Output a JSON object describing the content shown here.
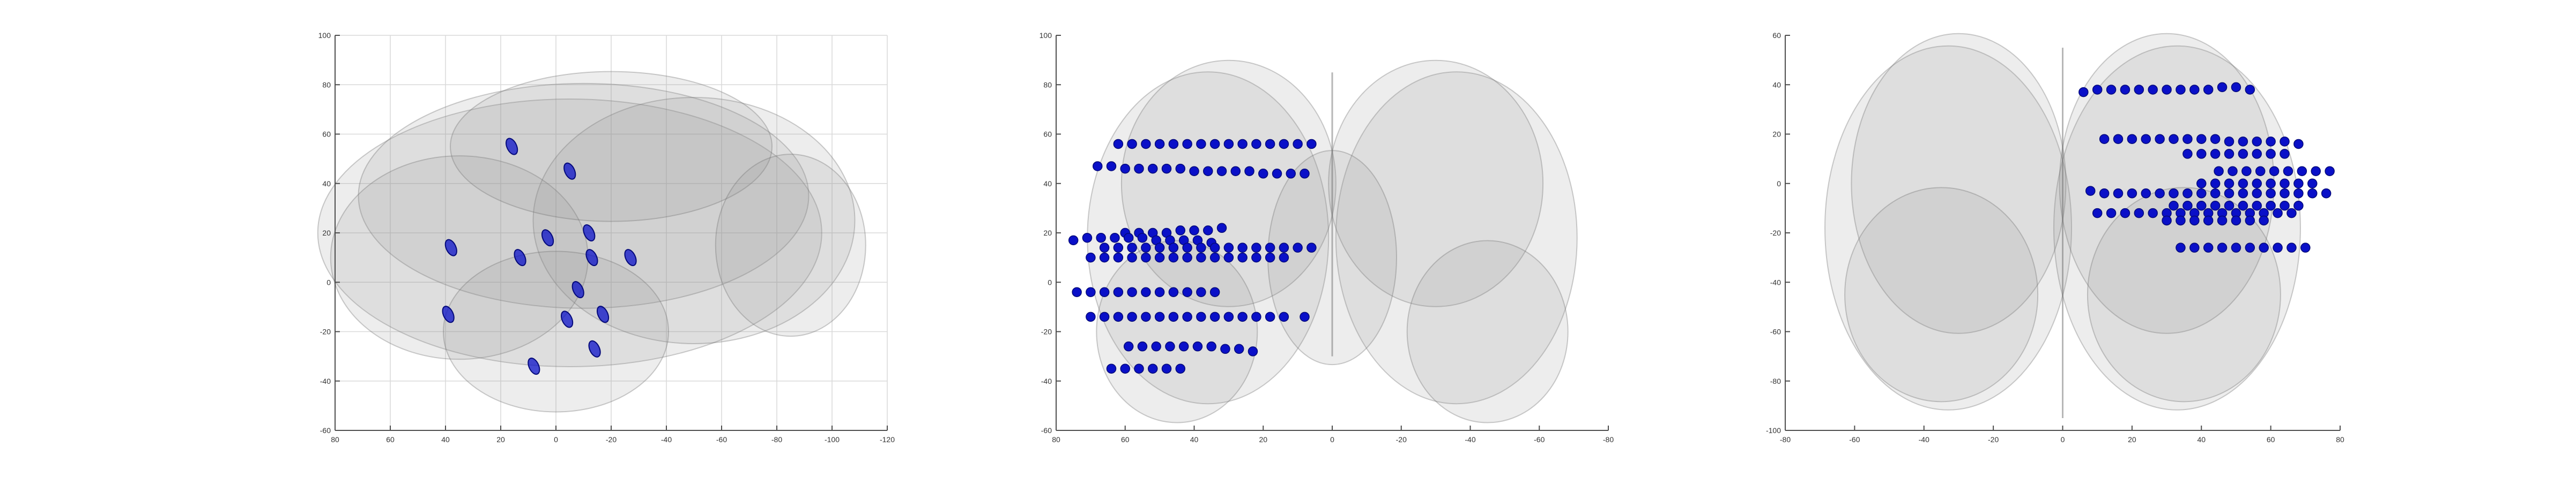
{
  "colors": {
    "background": "#ffffff",
    "axis": "#4d4d4d",
    "grid": "#d9d9d9",
    "tick_text": "#333333",
    "brain": "#8c8c8c",
    "electrode": "#0a10c8",
    "electrode_dark": "#050a7a"
  },
  "panels": [
    {
      "view": "sagittal",
      "grid": true,
      "xlim": [
        80,
        -120
      ],
      "ylim": [
        -60,
        100
      ],
      "x_ticks": [
        "80",
        "60",
        "40",
        "20",
        "0",
        "-20",
        "-40",
        "-60",
        "-80",
        "-100",
        "-120"
      ],
      "y_ticks": [
        "100",
        "80",
        "60",
        "40",
        "20",
        "0",
        "-20",
        "-40",
        "-60"
      ],
      "electrodes": [
        [
          16,
          55
        ],
        [
          -5,
          45
        ],
        [
          -12,
          20
        ],
        [
          3,
          18
        ],
        [
          -13,
          10
        ],
        [
          -27,
          10
        ],
        [
          38,
          14
        ],
        [
          13,
          10
        ],
        [
          -8,
          -3
        ],
        [
          -17,
          -13
        ],
        [
          -4,
          -15
        ],
        [
          39,
          -13
        ],
        [
          -14,
          -27
        ],
        [
          8,
          -34
        ]
      ]
    },
    {
      "view": "coronal",
      "grid": false,
      "xlim": [
        80,
        -80
      ],
      "ylim": [
        -60,
        100
      ],
      "x_ticks": [
        "80",
        "60",
        "40",
        "20",
        "0",
        "-20",
        "-40",
        "-60",
        "-80"
      ],
      "y_ticks": [
        "100",
        "80",
        "60",
        "40",
        "20",
        "0",
        "-20",
        "-40",
        "-60"
      ],
      "electrodes": [
        [
          62,
          56
        ],
        [
          58,
          56
        ],
        [
          54,
          56
        ],
        [
          50,
          56
        ],
        [
          46,
          56
        ],
        [
          42,
          56
        ],
        [
          38,
          56
        ],
        [
          34,
          56
        ],
        [
          30,
          56
        ],
        [
          26,
          56
        ],
        [
          22,
          56
        ],
        [
          18,
          56
        ],
        [
          14,
          56
        ],
        [
          10,
          56
        ],
        [
          6,
          56
        ],
        [
          68,
          47
        ],
        [
          64,
          47
        ],
        [
          60,
          46
        ],
        [
          56,
          46
        ],
        [
          52,
          46
        ],
        [
          48,
          46
        ],
        [
          44,
          46
        ],
        [
          40,
          45
        ],
        [
          36,
          45
        ],
        [
          32,
          45
        ],
        [
          28,
          45
        ],
        [
          24,
          45
        ],
        [
          20,
          44
        ],
        [
          16,
          44
        ],
        [
          12,
          44
        ],
        [
          8,
          44
        ],
        [
          60,
          20
        ],
        [
          56,
          20
        ],
        [
          52,
          20
        ],
        [
          48,
          20
        ],
        [
          44,
          21
        ],
        [
          40,
          21
        ],
        [
          36,
          21
        ],
        [
          32,
          22
        ],
        [
          75,
          17
        ],
        [
          71,
          18
        ],
        [
          67,
          18
        ],
        [
          63,
          18
        ],
        [
          59,
          18
        ],
        [
          55,
          18
        ],
        [
          51,
          17
        ],
        [
          47,
          17
        ],
        [
          43,
          17
        ],
        [
          39,
          17
        ],
        [
          35,
          16
        ],
        [
          66,
          14
        ],
        [
          62,
          14
        ],
        [
          58,
          14
        ],
        [
          54,
          14
        ],
        [
          50,
          14
        ],
        [
          46,
          14
        ],
        [
          42,
          14
        ],
        [
          38,
          14
        ],
        [
          34,
          14
        ],
        [
          30,
          14
        ],
        [
          26,
          14
        ],
        [
          22,
          14
        ],
        [
          18,
          14
        ],
        [
          14,
          14
        ],
        [
          10,
          14
        ],
        [
          6,
          14
        ],
        [
          70,
          10
        ],
        [
          66,
          10
        ],
        [
          62,
          10
        ],
        [
          58,
          10
        ],
        [
          54,
          10
        ],
        [
          50,
          10
        ],
        [
          46,
          10
        ],
        [
          42,
          10
        ],
        [
          38,
          10
        ],
        [
          34,
          10
        ],
        [
          30,
          10
        ],
        [
          26,
          10
        ],
        [
          22,
          10
        ],
        [
          18,
          10
        ],
        [
          14,
          10
        ],
        [
          74,
          -4
        ],
        [
          70,
          -4
        ],
        [
          66,
          -4
        ],
        [
          62,
          -4
        ],
        [
          58,
          -4
        ],
        [
          54,
          -4
        ],
        [
          50,
          -4
        ],
        [
          46,
          -4
        ],
        [
          42,
          -4
        ],
        [
          38,
          -4
        ],
        [
          34,
          -4
        ],
        [
          70,
          -14
        ],
        [
          66,
          -14
        ],
        [
          62,
          -14
        ],
        [
          58,
          -14
        ],
        [
          54,
          -14
        ],
        [
          50,
          -14
        ],
        [
          46,
          -14
        ],
        [
          42,
          -14
        ],
        [
          38,
          -14
        ],
        [
          34,
          -14
        ],
        [
          30,
          -14
        ],
        [
          26,
          -14
        ],
        [
          22,
          -14
        ],
        [
          18,
          -14
        ],
        [
          14,
          -14
        ],
        [
          8,
          -14
        ],
        [
          59,
          -26
        ],
        [
          55,
          -26
        ],
        [
          51,
          -26
        ],
        [
          47,
          -26
        ],
        [
          43,
          -26
        ],
        [
          39,
          -26
        ],
        [
          35,
          -26
        ],
        [
          31,
          -27
        ],
        [
          27,
          -27
        ],
        [
          23,
          -28
        ],
        [
          64,
          -35
        ],
        [
          60,
          -35
        ],
        [
          56,
          -35
        ],
        [
          52,
          -35
        ],
        [
          48,
          -35
        ],
        [
          44,
          -35
        ]
      ]
    },
    {
      "view": "axial",
      "grid": false,
      "xlim": [
        -80,
        80
      ],
      "ylim": [
        -100,
        60
      ],
      "x_ticks": [
        "-80",
        "-60",
        "-40",
        "-20",
        "0",
        "20",
        "40",
        "60",
        "80"
      ],
      "y_ticks": [
        "60",
        "40",
        "20",
        "0",
        "-20",
        "-40",
        "-60",
        "-80",
        "-100"
      ],
      "electrodes": [
        [
          6,
          37
        ],
        [
          10,
          38
        ],
        [
          14,
          38
        ],
        [
          18,
          38
        ],
        [
          22,
          38
        ],
        [
          26,
          38
        ],
        [
          30,
          38
        ],
        [
          34,
          38
        ],
        [
          38,
          38
        ],
        [
          42,
          38
        ],
        [
          46,
          39
        ],
        [
          50,
          39
        ],
        [
          54,
          38
        ],
        [
          12,
          18
        ],
        [
          16,
          18
        ],
        [
          20,
          18
        ],
        [
          24,
          18
        ],
        [
          28,
          18
        ],
        [
          32,
          18
        ],
        [
          36,
          18
        ],
        [
          40,
          18
        ],
        [
          44,
          18
        ],
        [
          48,
          17
        ],
        [
          52,
          17
        ],
        [
          56,
          17
        ],
        [
          60,
          17
        ],
        [
          64,
          17
        ],
        [
          68,
          16
        ],
        [
          36,
          12
        ],
        [
          40,
          12
        ],
        [
          44,
          12
        ],
        [
          48,
          12
        ],
        [
          52,
          12
        ],
        [
          56,
          12
        ],
        [
          60,
          12
        ],
        [
          64,
          12
        ],
        [
          45,
          5
        ],
        [
          49,
          5
        ],
        [
          53,
          5
        ],
        [
          57,
          5
        ],
        [
          61,
          5
        ],
        [
          65,
          5
        ],
        [
          69,
          5
        ],
        [
          73,
          5
        ],
        [
          77,
          5
        ],
        [
          40,
          0
        ],
        [
          44,
          0
        ],
        [
          48,
          0
        ],
        [
          52,
          0
        ],
        [
          56,
          0
        ],
        [
          60,
          0
        ],
        [
          64,
          0
        ],
        [
          68,
          0
        ],
        [
          72,
          0
        ],
        [
          8,
          -3
        ],
        [
          12,
          -4
        ],
        [
          16,
          -4
        ],
        [
          20,
          -4
        ],
        [
          24,
          -4
        ],
        [
          28,
          -4
        ],
        [
          32,
          -4
        ],
        [
          36,
          -4
        ],
        [
          40,
          -4
        ],
        [
          44,
          -4
        ],
        [
          48,
          -4
        ],
        [
          52,
          -4
        ],
        [
          56,
          -4
        ],
        [
          60,
          -4
        ],
        [
          64,
          -4
        ],
        [
          68,
          -4
        ],
        [
          72,
          -4
        ],
        [
          76,
          -4
        ],
        [
          32,
          -9
        ],
        [
          36,
          -9
        ],
        [
          40,
          -9
        ],
        [
          44,
          -9
        ],
        [
          48,
          -9
        ],
        [
          52,
          -9
        ],
        [
          56,
          -9
        ],
        [
          60,
          -9
        ],
        [
          64,
          -9
        ],
        [
          68,
          -9
        ],
        [
          10,
          -12
        ],
        [
          14,
          -12
        ],
        [
          18,
          -12
        ],
        [
          22,
          -12
        ],
        [
          26,
          -12
        ],
        [
          30,
          -12
        ],
        [
          34,
          -12
        ],
        [
          38,
          -12
        ],
        [
          42,
          -12
        ],
        [
          46,
          -12
        ],
        [
          50,
          -12
        ],
        [
          54,
          -12
        ],
        [
          58,
          -12
        ],
        [
          62,
          -12
        ],
        [
          66,
          -12
        ],
        [
          30,
          -15
        ],
        [
          34,
          -15
        ],
        [
          38,
          -15
        ],
        [
          42,
          -15
        ],
        [
          46,
          -15
        ],
        [
          50,
          -15
        ],
        [
          54,
          -15
        ],
        [
          58,
          -15
        ],
        [
          34,
          -26
        ],
        [
          38,
          -26
        ],
        [
          42,
          -26
        ],
        [
          46,
          -26
        ],
        [
          50,
          -26
        ],
        [
          54,
          -26
        ],
        [
          58,
          -26
        ],
        [
          62,
          -26
        ],
        [
          66,
          -26
        ],
        [
          70,
          -26
        ]
      ]
    }
  ]
}
